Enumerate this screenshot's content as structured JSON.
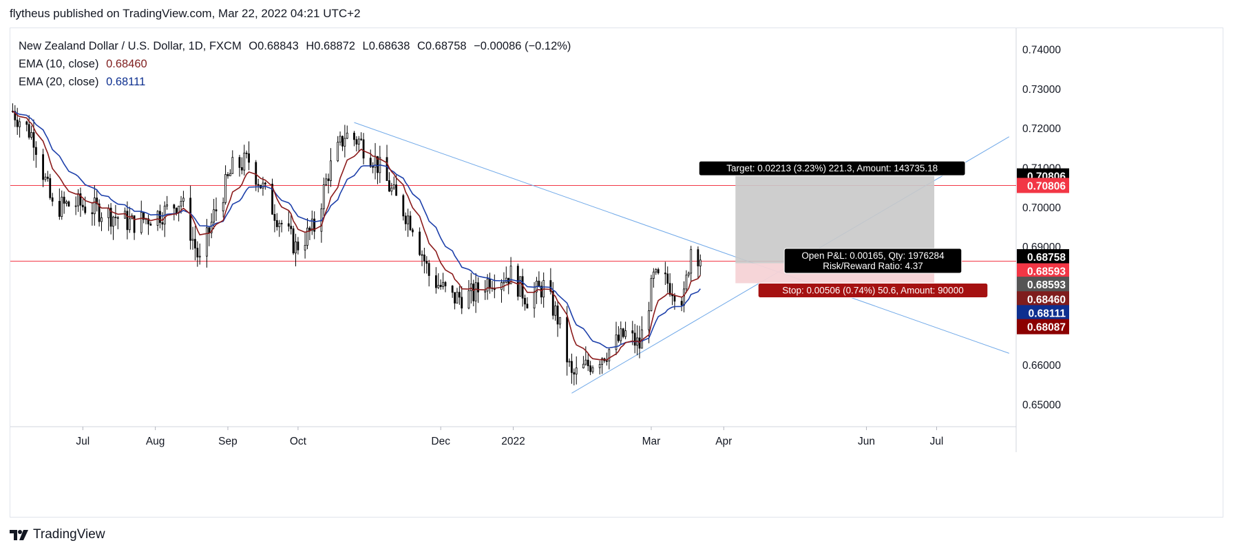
{
  "published_line": "flytheus published on TradingView.com, Mar 22, 2022 04:21 UTC+2",
  "footer_brand": "TradingView",
  "legend": {
    "symbol": "New Zealand Dollar / U.S. Dollar, 1D, FXCM",
    "o_label": "O",
    "o": "0.68843",
    "h_label": "H",
    "h": "0.68872",
    "l_label": "L",
    "l": "0.68638",
    "c_label": "C",
    "c": "0.68758",
    "change": "−0.00086 (−0.12%)",
    "ema10_label": "EMA (10, close)",
    "ema10_value": "0.68460",
    "ema20_label": "EMA (20, close)",
    "ema20_value": "0.68111"
  },
  "colors": {
    "up": "#ffffff",
    "down": "#000000",
    "wick": "#000000",
    "ema10": "#8b1a1a",
    "ema20": "#1c3faa",
    "hline": "#f23645",
    "trend": "#6fa8e8",
    "target_zone": "#c9c9c9",
    "stop_zone": "#f6d3d6"
  },
  "chart_data": {
    "type": "candlestick",
    "title": "",
    "xlabel": "",
    "ylabel": "",
    "ylim": [
      0.6445,
      0.7455
    ],
    "y_ticks": [
      "0.74000",
      "0.73000",
      "0.72000",
      "0.71000",
      "0.70000",
      "0.69000",
      "0.66000",
      "0.65000"
    ],
    "x_ticks": [
      "Jul",
      "Aug",
      "Sep",
      "Oct",
      "Dec",
      "2022",
      "Mar",
      "Apr",
      "Jun",
      "Jul"
    ],
    "price_labels": [
      {
        "text": "0.70806",
        "y": 0.70806,
        "bg": "#000000",
        "fg": "#ffffff"
      },
      {
        "text": "0.70806",
        "y": 0.70565,
        "bg": "#f23645",
        "fg": "#ffffff"
      },
      {
        "text": "0.68758",
        "y": 0.68758,
        "bg": "#000000",
        "fg": "#ffffff"
      },
      {
        "text": "0.68593",
        "y": 0.684,
        "bg": "#f23645",
        "fg": "#ffffff"
      },
      {
        "text": "0.68593",
        "y": 0.6806,
        "bg": "#555555",
        "fg": "#ffffff"
      },
      {
        "text": "0.68460",
        "y": 0.6769,
        "bg": "#7f1d1d",
        "fg": "#ffffff"
      },
      {
        "text": "0.68111",
        "y": 0.6734,
        "bg": "#0d2f8f",
        "fg": "#ffffff"
      },
      {
        "text": "0.68087",
        "y": 0.66985,
        "bg": "#8b0000",
        "fg": "#ffffff"
      }
    ],
    "horizontal_lines": [
      0.70565,
      0.68645
    ],
    "trendlines": [
      {
        "name": "",
        "start": {
          "date": "2021-10-25",
          "price": 0.7216
        },
        "end": {
          "date": "2022-08-01",
          "price": 0.6631
        }
      },
      {
        "name": "",
        "start": {
          "date": "2022-01-26",
          "price": 0.653
        },
        "end": {
          "date": "2022-08-01",
          "price": 0.718
        }
      }
    ],
    "position": {
      "entry": 0.68593,
      "target": 0.70806,
      "stop": 0.68087,
      "start_date": "2022-04-06",
      "end_date": "2022-06-30",
      "target_label": "Target: 0.02213 (3.23%) 221.3, Amount: 143735.18",
      "pnl_label": "Open P&L: 0.00165, Qty: 1976284",
      "rr_label": "Risk/Reward Ratio: 4.37",
      "stop_label": "Stop: 0.00506 (0.74%) 50.6, Amount: 90000"
    },
    "anchors": [
      {
        "date": "2021-06-01",
        "price": 0.7245
      },
      {
        "date": "2021-06-10",
        "price": 0.718
      },
      {
        "date": "2021-06-18",
        "price": 0.7
      },
      {
        "date": "2021-06-28",
        "price": 0.701
      },
      {
        "date": "2021-07-10",
        "price": 0.699
      },
      {
        "date": "2021-07-22",
        "price": 0.696
      },
      {
        "date": "2021-08-05",
        "price": 0.699
      },
      {
        "date": "2021-08-12",
        "price": 0.702
      },
      {
        "date": "2021-08-20",
        "price": 0.686
      },
      {
        "date": "2021-08-26",
        "price": 0.698
      },
      {
        "date": "2021-09-03",
        "price": 0.71
      },
      {
        "date": "2021-09-10",
        "price": 0.712
      },
      {
        "date": "2021-09-20",
        "price": 0.7
      },
      {
        "date": "2021-09-30",
        "price": 0.69
      },
      {
        "date": "2021-10-08",
        "price": 0.695
      },
      {
        "date": "2021-10-14",
        "price": 0.709
      },
      {
        "date": "2021-10-21",
        "price": 0.7185
      },
      {
        "date": "2021-10-27",
        "price": 0.717
      },
      {
        "date": "2021-11-03",
        "price": 0.712
      },
      {
        "date": "2021-11-12",
        "price": 0.702
      },
      {
        "date": "2021-11-19",
        "price": 0.696
      },
      {
        "date": "2021-11-26",
        "price": 0.683
      },
      {
        "date": "2021-12-06",
        "price": 0.677
      },
      {
        "date": "2021-12-15",
        "price": 0.678
      },
      {
        "date": "2021-12-22",
        "price": 0.682
      },
      {
        "date": "2021-12-31",
        "price": 0.683
      },
      {
        "date": "2022-01-07",
        "price": 0.677
      },
      {
        "date": "2022-01-14",
        "price": 0.68
      },
      {
        "date": "2022-01-20",
        "price": 0.672
      },
      {
        "date": "2022-01-26",
        "price": 0.657
      },
      {
        "date": "2022-02-04",
        "price": 0.661
      },
      {
        "date": "2022-02-11",
        "price": 0.664
      },
      {
        "date": "2022-02-18",
        "price": 0.668
      },
      {
        "date": "2022-02-24",
        "price": 0.665
      },
      {
        "date": "2022-03-02",
        "price": 0.682
      },
      {
        "date": "2022-03-08",
        "price": 0.681
      },
      {
        "date": "2022-03-15",
        "price": 0.677
      },
      {
        "date": "2022-03-18",
        "price": 0.69
      },
      {
        "date": "2022-03-22",
        "price": 0.6876
      }
    ],
    "ema_lag": {
      "ema10": 10,
      "ema20": 20
    }
  }
}
